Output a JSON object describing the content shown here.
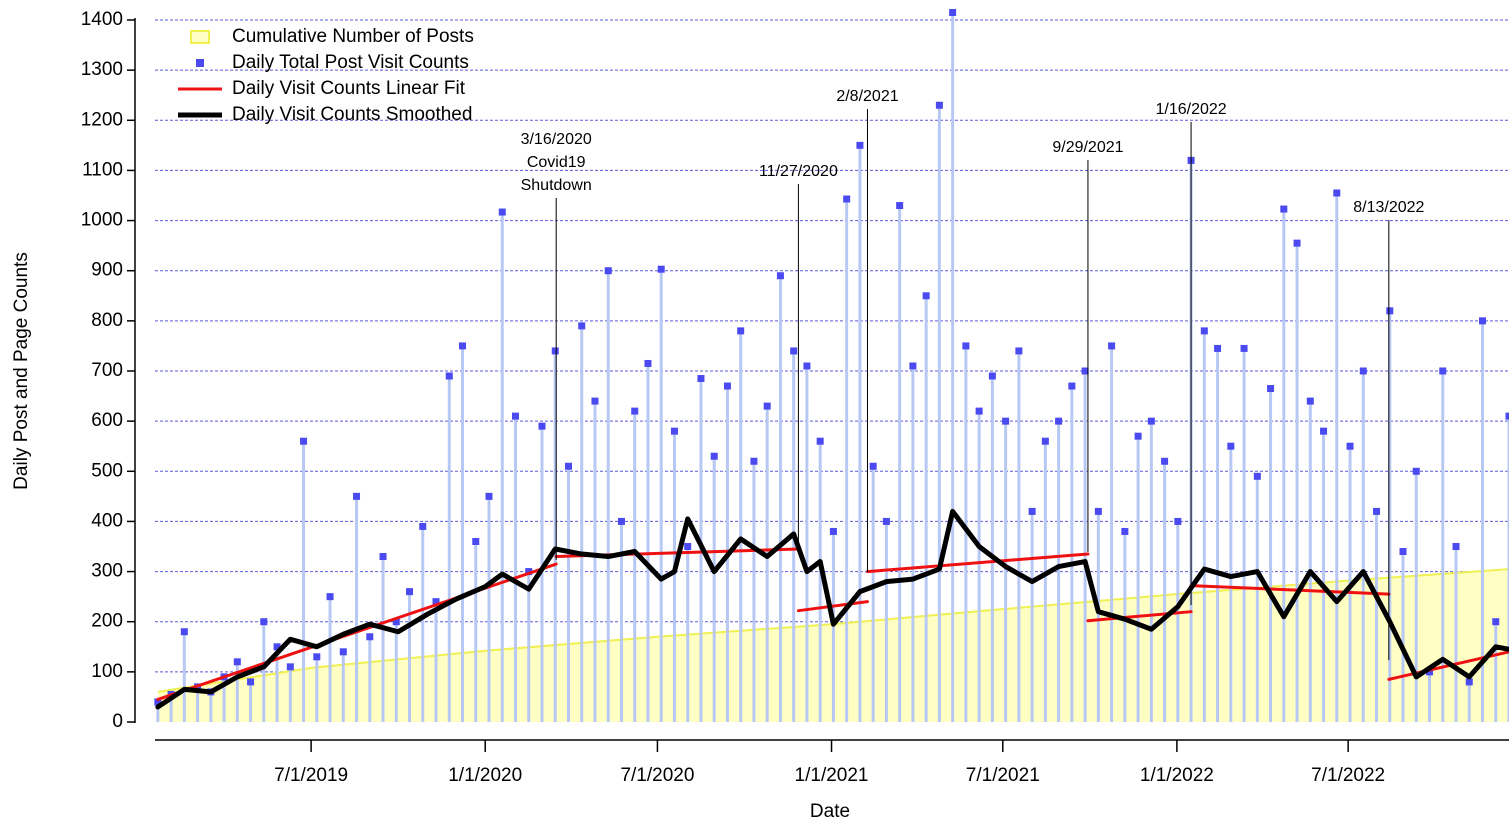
{
  "chart_data": {
    "type": "line",
    "xlabel": "Date",
    "ylabel": "Daily Post and Page Counts",
    "xlim": [
      "1/17/2019",
      "12/18/2022"
    ],
    "xticks": [
      "7/1/2019",
      "1/1/2020",
      "7/1/2020",
      "1/1/2021",
      "7/1/2021",
      "1/1/2022",
      "7/1/2022"
    ],
    "ylim": [
      0,
      1400
    ],
    "yticks": [
      0,
      100,
      200,
      300,
      400,
      500,
      600,
      700,
      800,
      900,
      1000,
      1100,
      1200,
      1300,
      1400
    ],
    "grid": true,
    "legend": "upper left",
    "series": [
      {
        "name": "Cumulative Number of Posts",
        "kind": "area",
        "color": "#f0f050",
        "fill": "#ffffc4",
        "x": [
          "1/20/2019",
          "7/1/2019",
          "1/1/2020",
          "7/1/2020",
          "1/1/2021",
          "7/1/2021",
          "1/1/2022",
          "7/1/2022",
          "12/18/2022"
        ],
        "values": [
          60,
          108,
          142,
          170,
          195,
          225,
          255,
          282,
          305
        ]
      },
      {
        "name": "Daily Total Post Visit Counts",
        "kind": "scatter",
        "color": "#4a4af0",
        "stem_color": "#b8c8f4",
        "x": [
          "1/20/2019",
          "2/3/2019",
          "2/17/2019",
          "3/3/2019",
          "3/17/2019",
          "3/31/2019",
          "4/14/2019",
          "4/28/2019",
          "5/12/2019",
          "5/26/2019",
          "6/9/2019",
          "6/23/2019",
          "7/7/2019",
          "7/21/2019",
          "8/4/2019",
          "8/18/2019",
          "9/1/2019",
          "9/15/2019",
          "9/29/2019",
          "10/13/2019",
          "10/27/2019",
          "11/10/2019",
          "11/24/2019",
          "12/8/2019",
          "12/22/2019",
          "1/5/2020",
          "1/19/2020",
          "2/2/2020",
          "2/16/2020",
          "3/1/2020",
          "3/15/2020",
          "3/29/2020",
          "4/12/2020",
          "4/26/2020",
          "5/10/2020",
          "5/24/2020",
          "6/7/2020",
          "6/21/2020",
          "7/5/2020",
          "7/19/2020",
          "8/2/2020",
          "8/16/2020",
          "8/30/2020",
          "9/13/2020",
          "9/27/2020",
          "10/11/2020",
          "10/25/2020",
          "11/8/2020",
          "11/22/2020",
          "12/6/2020",
          "12/20/2020",
          "1/3/2021",
          "1/17/2021",
          "1/31/2021",
          "2/14/2021",
          "2/28/2021",
          "3/14/2021",
          "3/28/2021",
          "4/11/2021",
          "4/25/2021",
          "5/9/2021",
          "5/23/2021",
          "6/6/2021",
          "6/20/2021",
          "7/4/2021",
          "7/18/2021",
          "8/1/2021",
          "8/15/2021",
          "8/29/2021",
          "9/12/2021",
          "9/26/2021",
          "10/10/2021",
          "10/24/2021",
          "11/7/2021",
          "11/21/2021",
          "12/5/2021",
          "12/19/2021",
          "1/2/2022",
          "1/16/2022",
          "1/30/2022",
          "2/13/2022",
          "2/27/2022",
          "3/13/2022",
          "3/27/2022",
          "4/10/2022",
          "4/24/2022",
          "5/8/2022",
          "5/22/2022",
          "6/5/2022",
          "6/19/2022",
          "7/3/2022",
          "7/17/2022",
          "7/31/2022",
          "8/14/2022",
          "8/28/2022",
          "9/11/2022",
          "9/25/2022",
          "10/9/2022",
          "10/23/2022",
          "11/6/2022",
          "11/20/2022",
          "12/4/2022",
          "12/18/2022"
        ],
        "values": [
          40,
          55,
          180,
          70,
          60,
          90,
          120,
          80,
          200,
          150,
          110,
          560,
          130,
          250,
          140,
          450,
          170,
          330,
          200,
          260,
          390,
          240,
          690,
          750,
          360,
          450,
          1017,
          610,
          300,
          590,
          740,
          510,
          790,
          640,
          900,
          400,
          620,
          715,
          903,
          580,
          350,
          685,
          530,
          670,
          780,
          520,
          630,
          890,
          740,
          710,
          560,
          380,
          1043,
          1150,
          510,
          400,
          1030,
          710,
          850,
          1230,
          1415,
          750,
          620,
          690,
          600,
          740,
          420,
          560,
          600,
          670,
          700,
          420,
          750,
          380,
          570,
          600,
          520,
          400,
          1120,
          780,
          745,
          550,
          745,
          490,
          665,
          1023,
          955,
          640,
          580,
          1055,
          550,
          700,
          420,
          820,
          340,
          500,
          100,
          700,
          350,
          80,
          800,
          200,
          610
        ]
      },
      {
        "name": "Daily Visit Counts Linear Fit",
        "kind": "line",
        "color": "#ee1111",
        "width": 3,
        "x": [
          "1/20/2019",
          "3/16/2020",
          "3/16/2020",
          "3/16/2020",
          "11/27/2020",
          "11/27/2020",
          "11/27/2020",
          "2/8/2021",
          "2/8/2021",
          "2/8/2021",
          "9/29/2021",
          "9/29/2021",
          "9/29/2021",
          "1/16/2022",
          "1/16/2022",
          "1/16/2022",
          "8/13/2022",
          "8/13/2022",
          "8/13/2022",
          "12/18/2022"
        ],
        "values": [
          45,
          315,
          null,
          330,
          345,
          null,
          222,
          240,
          null,
          300,
          335,
          null,
          202,
          220,
          null,
          272,
          255,
          null,
          85,
          140
        ]
      },
      {
        "name": "Daily Visit Counts Smoothed",
        "kind": "line",
        "color": "#000000",
        "width": 5,
        "x": [
          "1/20/2019",
          "2/17/2019",
          "3/17/2019",
          "4/14/2019",
          "5/12/2019",
          "6/9/2019",
          "7/7/2019",
          "8/4/2019",
          "9/1/2019",
          "10/1/2019",
          "11/1/2019",
          "12/1/2019",
          "1/1/2020",
          "1/19/2020",
          "2/16/2020",
          "3/15/2020",
          "4/12/2020",
          "5/10/2020",
          "6/7/2020",
          "7/5/2020",
          "7/19/2020",
          "8/2/2020",
          "8/30/2020",
          "9/27/2020",
          "10/25/2020",
          "11/22/2020",
          "12/6/2020",
          "12/20/2020",
          "1/3/2021",
          "1/31/2021",
          "2/28/2021",
          "3/28/2021",
          "4/25/2021",
          "5/9/2021",
          "6/6/2021",
          "7/4/2021",
          "8/1/2021",
          "8/29/2021",
          "9/26/2021",
          "10/10/2021",
          "11/7/2021",
          "12/5/2021",
          "1/2/2022",
          "1/30/2022",
          "2/27/2022",
          "3/27/2022",
          "4/24/2022",
          "5/22/2022",
          "6/19/2022",
          "7/17/2022",
          "8/14/2022",
          "9/11/2022",
          "10/9/2022",
          "11/6/2022",
          "12/4/2022",
          "12/18/2022"
        ],
        "values": [
          30,
          65,
          60,
          90,
          110,
          165,
          150,
          175,
          195,
          180,
          215,
          245,
          270,
          295,
          265,
          345,
          335,
          330,
          340,
          285,
          300,
          405,
          300,
          365,
          330,
          375,
          300,
          320,
          195,
          260,
          280,
          285,
          305,
          420,
          350,
          310,
          280,
          310,
          320,
          220,
          205,
          185,
          230,
          305,
          290,
          300,
          210,
          300,
          240,
          300,
          200,
          90,
          125,
          90,
          150,
          145
        ]
      }
    ],
    "annotations": [
      {
        "x": "3/16/2020",
        "text": [
          "3/16/2020",
          "Covid19",
          "Shutdown"
        ]
      },
      {
        "x": "11/27/2020",
        "text": [
          "11/27/2020"
        ]
      },
      {
        "x": "2/8/2021",
        "text": [
          "2/8/2021"
        ]
      },
      {
        "x": "9/29/2021",
        "text": [
          "9/29/2021"
        ]
      },
      {
        "x": "1/16/2022",
        "text": [
          "1/16/2022"
        ]
      },
      {
        "x": "8/13/2022",
        "text": [
          "8/13/2022"
        ]
      }
    ]
  }
}
